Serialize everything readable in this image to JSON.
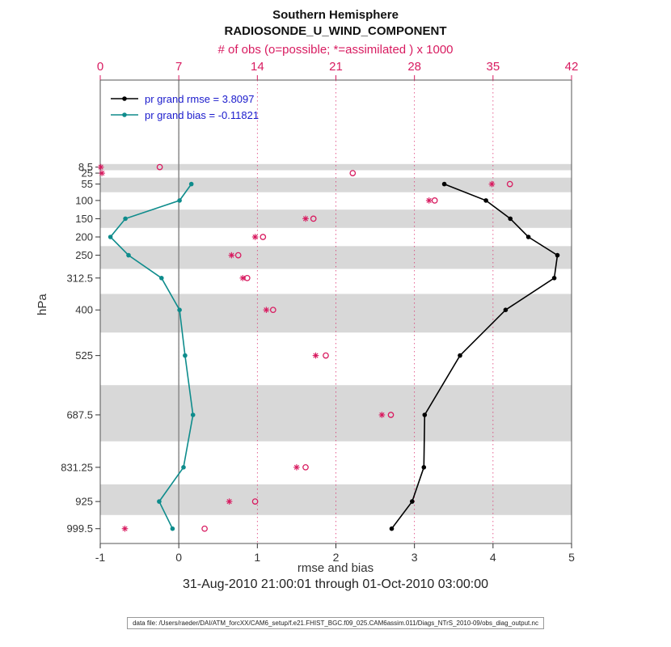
{
  "header": {
    "title_line1": "Southern Hemisphere",
    "title_line2": "RADIOSONDE_U_WIND_COMPONENT"
  },
  "axes": {
    "top": {
      "label": "# of obs (o=possible; *=assimilated ) x 1000",
      "ticks": [
        "0",
        "7",
        "14",
        "21",
        "28",
        "35",
        "42"
      ]
    },
    "bottom": {
      "label": "rmse and bias",
      "ticks": [
        "-1",
        "0",
        "1",
        "2",
        "3",
        "4",
        "5"
      ]
    },
    "left": {
      "label": "hPa"
    }
  },
  "legend": {
    "text_color": "#1a1acc",
    "items": [
      {
        "label": "pr grand rmse = 3.8097",
        "color": "#000000"
      },
      {
        "label": "pr grand bias = -0.11821",
        "color": "#0e8c8c"
      }
    ]
  },
  "subtitle": "31-Aug-2010 21:00:01 through 01-Oct-2010 03:00:00",
  "footer": "data file: /Users/raeder/DAI/ATM_forcXX/CAM6_setup/f.e21.FHIST_BGC.f09_025.CAM6assim.011/Diags_NTrS_2010-09/obs_diag_output.nc",
  "colors": {
    "obs": "#d81b60",
    "band": "#d8d8d8",
    "zero_line": "#8a8a8a",
    "frame": "#555555",
    "tick_text": "#333333"
  },
  "chart_data": {
    "type": "line",
    "title": "Southern Hemisphere - RADIOSONDE_U_WIND_COMPONENT",
    "xlabel_bottom": "rmse and bias",
    "xlabel_top": "# of obs (o=possible; *=assimilated ) x 1000",
    "ylabel": "hPa",
    "xlim_bottom": [
      -1,
      5
    ],
    "xlim_top": [
      0,
      42
    ],
    "ylim_pressure": [
      -230,
      1040
    ],
    "y_axis_note": "linear in pressure, inverted (pressure increases downward)",
    "grid": {
      "vertical_pink_dotted_at_top_ticks": true,
      "solid_zero_line_at_bottom_axis_0": true
    },
    "levels_hpa": [
      8.5,
      25,
      55,
      100,
      150,
      200,
      250,
      312.5,
      400,
      525,
      687.5,
      831.25,
      925,
      999.5
    ],
    "level_tick_labels": [
      "8.5",
      "25",
      "55",
      "100",
      "150",
      "200",
      "250",
      "312.5",
      "400",
      "525",
      "687.5",
      "831.25",
      "925",
      "999.5"
    ],
    "gray_bands_hpa": [
      [
        0,
        17
      ],
      [
        37.5,
        77.5
      ],
      [
        125,
        175
      ],
      [
        225,
        287.5
      ],
      [
        356,
        462
      ],
      [
        606,
        760
      ],
      [
        878,
        962
      ]
    ],
    "series": [
      {
        "name": "pr grand rmse",
        "axis": "bottom",
        "style": "line-dot",
        "color": "#000000",
        "values": [
          null,
          null,
          3.38,
          3.91,
          4.22,
          4.45,
          4.82,
          4.78,
          4.16,
          3.58,
          3.13,
          3.12,
          2.97,
          2.71
        ]
      },
      {
        "name": "pr grand bias",
        "axis": "bottom",
        "style": "line-dot",
        "color": "#0e8c8c",
        "values": [
          null,
          null,
          0.16,
          0.01,
          -0.68,
          -0.87,
          -0.64,
          -0.22,
          0.01,
          0.08,
          0.18,
          0.06,
          -0.25,
          -0.08
        ]
      },
      {
        "name": "N possible x1000",
        "axis": "top",
        "style": "open-circle",
        "color": "#d81b60",
        "values": [
          5.3,
          22.5,
          36.5,
          29.8,
          19.0,
          14.5,
          12.3,
          13.1,
          15.4,
          20.1,
          25.9,
          18.3,
          13.8,
          9.3
        ]
      },
      {
        "name": "N assimilated x1000",
        "axis": "top",
        "style": "asterisk",
        "color": "#d81b60",
        "values": [
          0.05,
          0.15,
          34.9,
          29.3,
          18.3,
          13.8,
          11.7,
          12.7,
          14.8,
          19.2,
          25.1,
          17.5,
          11.5,
          2.2
        ]
      }
    ]
  }
}
